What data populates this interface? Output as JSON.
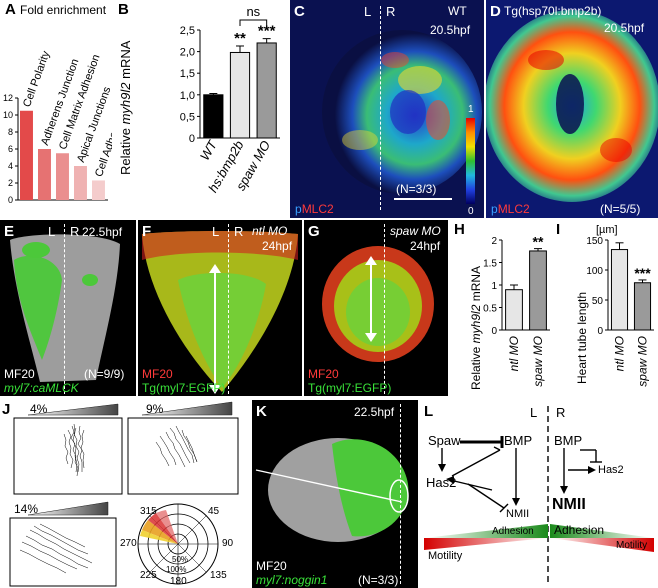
{
  "panels": {
    "A": {
      "label": "A",
      "title": "Fold enrichment"
    },
    "B": {
      "label": "B",
      "ylabel_pre": "Relative ",
      "ylabel_gene": "myh9l2",
      "ylabel_post": " mRNA",
      "sig_ns": "ns",
      "sig_hs": "**",
      "sig_spaw": "***"
    },
    "C": {
      "label": "C",
      "left": "L",
      "right": "R",
      "condition": "WT",
      "time": "20.5hpf",
      "stain_p": "p",
      "stain_mlc": "MLC2",
      "n": "(N=3/3)",
      "scale_max": "1",
      "scale_min": "0"
    },
    "D": {
      "label": "D",
      "condition": "Tg(hsp70l:bmp2b)",
      "time": "20.5hpf",
      "stain_p": "p",
      "stain_mlc": "MLC2",
      "n": "(N=5/5)"
    },
    "E": {
      "label": "E",
      "left": "L",
      "right": "R",
      "time": "22.5hpf",
      "stain": "MF20",
      "transgene": "myl7:caMLCK",
      "n": "(N=9/9)"
    },
    "F": {
      "label": "F",
      "left": "L",
      "right": "R",
      "mo": "ntl MO",
      "time": "24hpf",
      "stain": "MF20",
      "transgene": "Tg(myl7:EGFP)"
    },
    "G": {
      "label": "G",
      "mo": "spaw MO",
      "time": "24hpf",
      "stain": "MF20",
      "transgene": "Tg(myl7:EGFP)"
    },
    "H": {
      "label": "H",
      "ylabel_pre": "Relative ",
      "ylabel_gene": "myh9l2",
      "ylabel_post": " mRNA",
      "sig": "**"
    },
    "I": {
      "label": "I",
      "unit": "[µm]",
      "ylabel": "Heart tube length",
      "sig": "***"
    },
    "J": {
      "label": "J",
      "pct1": "4%",
      "pct2": "9%",
      "pct3": "14%",
      "angles": [
        "315",
        "45",
        "270",
        "90",
        "225",
        "135",
        "180"
      ],
      "rings": [
        "50%",
        "100%"
      ]
    },
    "K": {
      "label": "K",
      "time": "22.5hpf",
      "stain": "MF20",
      "transgene": "myl7:noggin1",
      "n": "(N=3/3)"
    },
    "L": {
      "label": "L",
      "left": "L",
      "right": "R",
      "spaw": "Spaw",
      "bmp_left": "BMP",
      "bmp_right": "BMP",
      "has2_left": "Has2",
      "has2_right": "Has2",
      "nmii_left": "NMII",
      "nmii_right": "NMII",
      "motility_left": "Motility",
      "adhesion_left": "Adhesion",
      "adhesion_right": "Adhesion",
      "motility_right": "Motility"
    }
  },
  "chart_data": [
    {
      "panel": "A",
      "type": "bar",
      "title": "Fold enrichment",
      "categories": [
        "Cell Polarity",
        "Adherens Junction",
        "Cell Matrix Adhesion",
        "Apical Junctions",
        "Cell Adhesion"
      ],
      "values": [
        10.5,
        6.0,
        5.5,
        4.0,
        2.3
      ],
      "colors": [
        "#e34a4a",
        "#e67272",
        "#ea8f8f",
        "#efb2b2",
        "#f4cccc"
      ],
      "ylim": [
        0,
        12
      ],
      "yticks": [
        "0",
        "2",
        "4",
        "6",
        "8",
        "10",
        "12"
      ]
    },
    {
      "panel": "B",
      "type": "bar",
      "categories": [
        "WT",
        "hs:bmp2b",
        "spaw MO"
      ],
      "values": [
        1.0,
        1.98,
        2.2
      ],
      "errors": [
        0.03,
        0.15,
        0.1
      ],
      "colors": [
        "#000000",
        "#e6e6e6",
        "#9a9a9a"
      ],
      "ylim": [
        0,
        2.5
      ],
      "yticks": [
        "0",
        "0,5",
        "1,0",
        "1,5",
        "2,0",
        "2,5"
      ]
    },
    {
      "panel": "H",
      "type": "bar",
      "categories": [
        "ntl MO",
        "spaw MO"
      ],
      "values": [
        1.03,
        2.02
      ],
      "errors": [
        0.12,
        0.06
      ],
      "colors": [
        "#e6e6e6",
        "#9a9a9a"
      ],
      "ylim": [
        0,
        2.3
      ],
      "yticks": [
        "0",
        "0.5",
        "1",
        "1.5",
        "2"
      ]
    },
    {
      "panel": "I",
      "type": "bar",
      "categories": [
        "ntl MO",
        "spaw MO"
      ],
      "values": [
        143,
        84
      ],
      "errors": [
        12,
        5
      ],
      "colors": [
        "#e6e6e6",
        "#9a9a9a"
      ],
      "ylim": [
        0,
        160
      ],
      "yticks": [
        "0",
        "50",
        "100",
        "150"
      ]
    }
  ]
}
